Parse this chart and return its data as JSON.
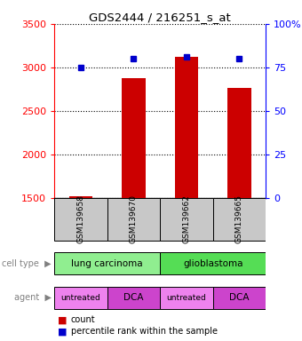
{
  "title": "GDS2444 / 216251_s_at",
  "samples": [
    "GSM139658",
    "GSM139670",
    "GSM139662",
    "GSM139665"
  ],
  "counts": [
    1519,
    2871,
    3120,
    2760
  ],
  "percentile_ranks": [
    75,
    80,
    81,
    80
  ],
  "ylim_left": [
    1500,
    3500
  ],
  "ylim_right": [
    0,
    100
  ],
  "yticks_left": [
    1500,
    2000,
    2500,
    3000,
    3500
  ],
  "yticks_right": [
    0,
    25,
    50,
    75,
    100
  ],
  "yticklabels_right": [
    "0",
    "25",
    "50",
    "75",
    "100%"
  ],
  "cell_types": [
    {
      "label": "lung carcinoma",
      "span": [
        0,
        2
      ],
      "color": "#90EE90"
    },
    {
      "label": "glioblastoma",
      "span": [
        2,
        4
      ],
      "color": "#55DD55"
    }
  ],
  "agents": [
    {
      "label": "untreated",
      "span": [
        0,
        1
      ],
      "color": "#EE82EE"
    },
    {
      "label": "DCA",
      "span": [
        1,
        2
      ],
      "color": "#CC44CC"
    },
    {
      "label": "untreated",
      "span": [
        2,
        3
      ],
      "color": "#EE82EE"
    },
    {
      "label": "DCA",
      "span": [
        3,
        4
      ],
      "color": "#CC44CC"
    }
  ],
  "bar_color": "#CC0000",
  "dot_color": "#0000CC",
  "bar_width": 0.45,
  "sample_box_color": "#C8C8C8",
  "cell_type_label": "cell type",
  "agent_label": "agent",
  "legend_count_label": "count",
  "legend_pct_label": "percentile rank within the sample"
}
